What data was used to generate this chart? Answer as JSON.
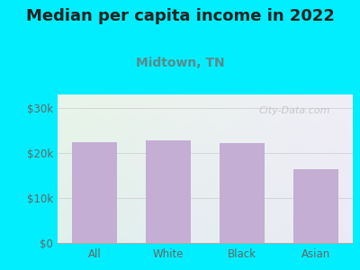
{
  "title": "Median per capita income in 2022",
  "subtitle": "Midtown, TN",
  "categories": [
    "All",
    "White",
    "Black",
    "Asian"
  ],
  "values": [
    22500,
    22800,
    22300,
    16500
  ],
  "bar_color": "#c4aed4",
  "title_fontsize": 13,
  "subtitle_fontsize": 10,
  "title_color": "#222222",
  "subtitle_color": "#5a8a8a",
  "tick_color": "#666666",
  "background_outer": "#00eeff",
  "yticks": [
    0,
    10000,
    20000,
    30000
  ],
  "ytick_labels": [
    "$0",
    "$10k",
    "$20k",
    "$30k"
  ],
  "ylim": [
    0,
    33000
  ],
  "watermark": "City-Data.com"
}
